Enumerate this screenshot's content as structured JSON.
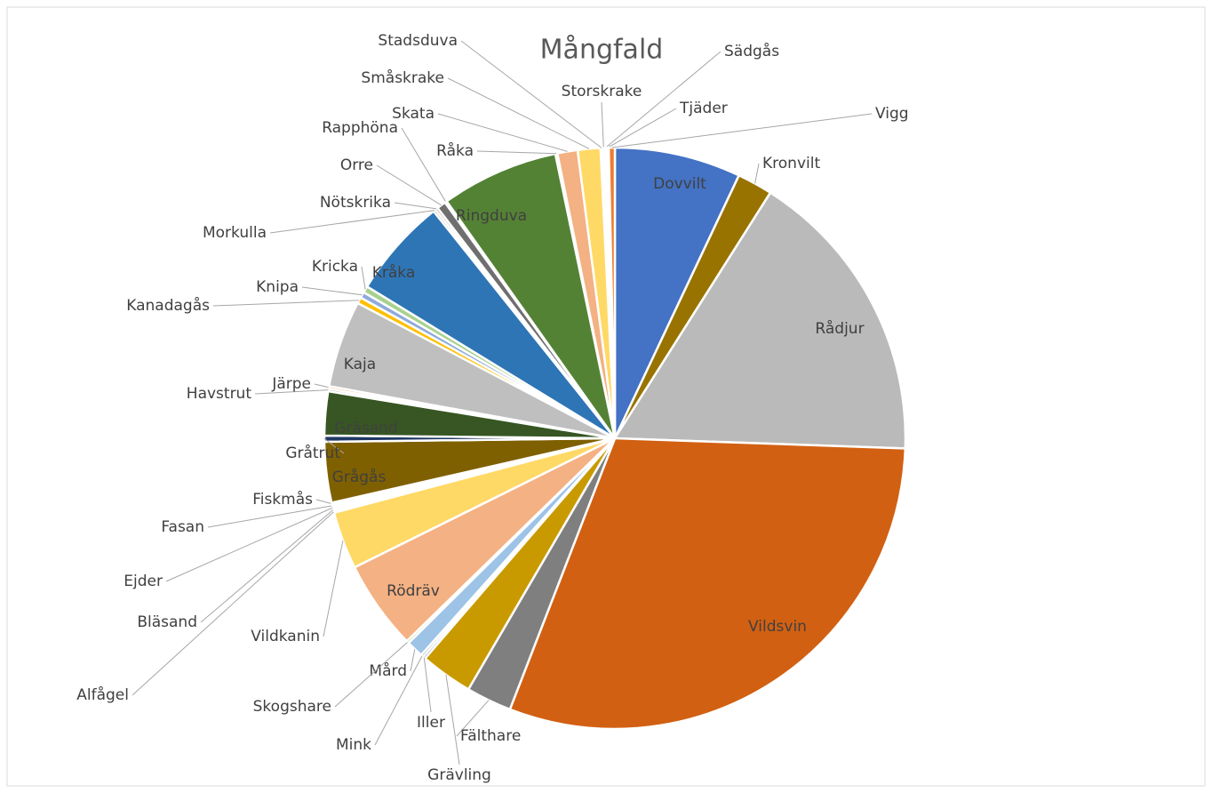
{
  "chart_data": {
    "type": "pie",
    "title": "Mångfald",
    "categories": [
      "Dovvilt",
      "Kronvilt",
      "Rådjur",
      "Vildsvin",
      "Fälthare",
      "Grävling",
      "Iller",
      "Mink",
      "Mård",
      "Skogshare",
      "Rödräv",
      "Vildkanin",
      "Alfågel",
      "Bläsand",
      "Ejder",
      "Fasan",
      "Fiskmås",
      "Grågås",
      "Gråtrut",
      "Gräsand",
      "Havstrut",
      "Järpe",
      "Kaja",
      "Kanadagås",
      "Knipa",
      "Kricka",
      "Kråka",
      "Morkulla",
      "Nötskrika",
      "Orre",
      "Rapphöna",
      "Ringduva",
      "Råka",
      "Skata",
      "Småskrake",
      "Stadsduva",
      "Storskrake",
      "Sädgås",
      "Tjäder",
      "Vigg"
    ],
    "values": [
      25,
      7,
      59,
      108,
      9,
      10.4,
      0.5,
      0.5,
      3.4,
      0.5,
      17.7,
      11.4,
      0.4,
      0.4,
      0.4,
      0.4,
      0.4,
      12,
      1.2,
      8.7,
      0.5,
      0.5,
      17.2,
      1.2,
      1.2,
      1.3,
      19.7,
      0.5,
      0.5,
      1.8,
      0.4,
      23.3,
      0.4,
      4,
      4.5,
      0.4,
      0.4,
      0.4,
      0.4,
      1.2
    ],
    "colors": [
      "#4472c4",
      "#997300",
      "#bababa",
      "#d26012",
      "#7f7f7f",
      "#c99a00",
      "#264478",
      "#636363",
      "#9dc3e6",
      "#70ad47",
      "#f4b183",
      "#ffd966",
      "#5b9bd5",
      "#a5a5a5",
      "#ffc000",
      "#4472c4",
      "#70ad47",
      "#7f6000",
      "#203864",
      "#375623",
      "#a5a5a5",
      "#ed7d31",
      "#bfbfbf",
      "#ffc000",
      "#8faadc",
      "#a9d18e",
      "#2e75b6",
      "#7f7f7f",
      "#843c0c",
      "#6f6f6f",
      "#bf9000",
      "#548235",
      "#2f5597",
      "#f4b183",
      "#ffd966",
      "#9dc3e6",
      "#a9d18e",
      "#bfbfbf",
      "#ffc000",
      "#ed7d31"
    ]
  }
}
